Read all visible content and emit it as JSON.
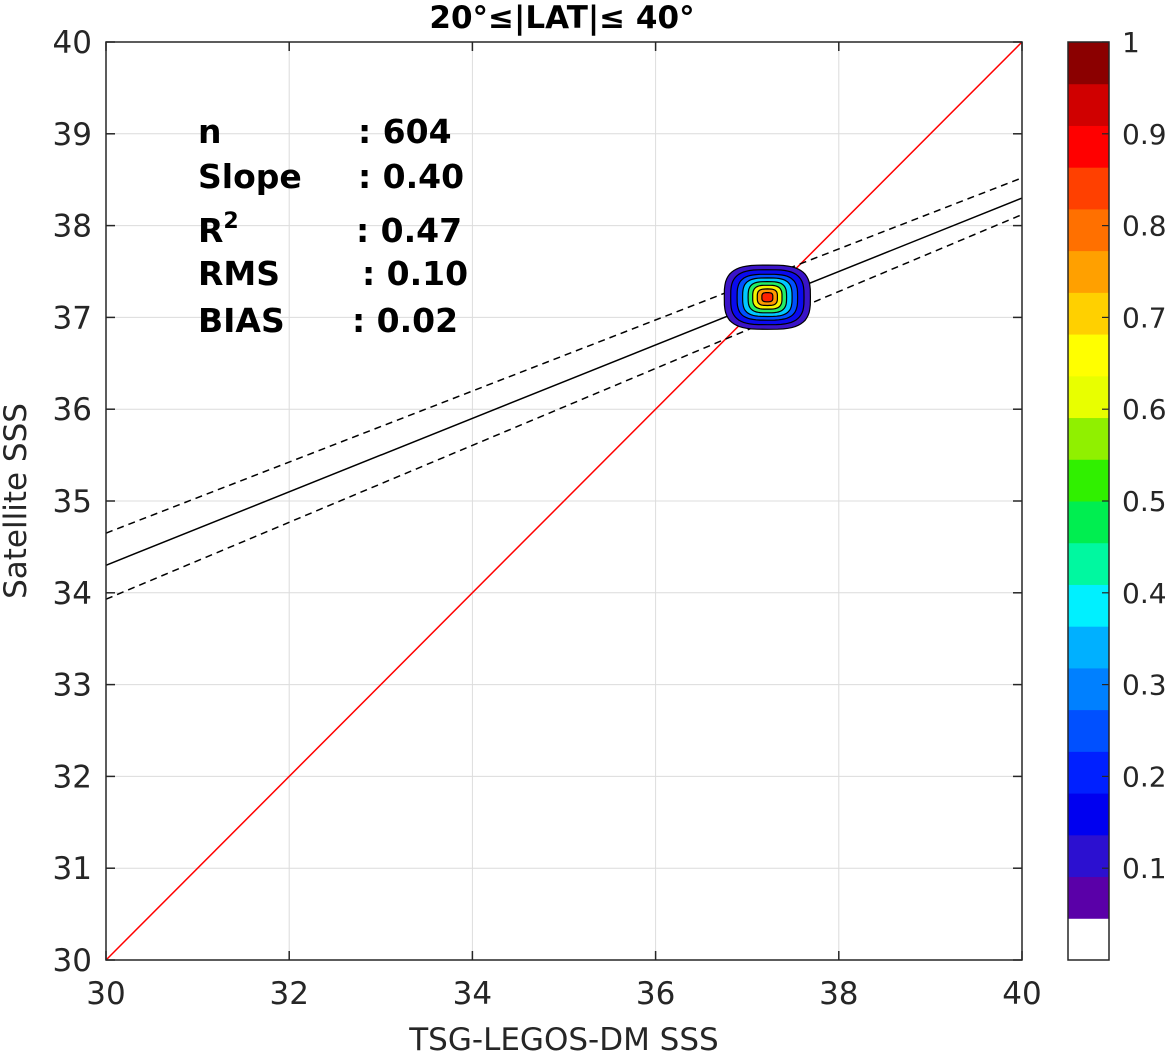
{
  "chart_data": {
    "type": "contour",
    "title": "20°≤|LAT|≤ 40°",
    "xlabel": "TSG-LEGOS-DM SSS",
    "ylabel": "Satellite SSS",
    "xlim": [
      30,
      40
    ],
    "ylim": [
      30,
      40
    ],
    "xticks": [
      "30",
      "32",
      "34",
      "36",
      "38",
      "40"
    ],
    "yticks": [
      "30",
      "31",
      "32",
      "33",
      "34",
      "35",
      "36",
      "37",
      "38",
      "39",
      "40"
    ],
    "grid": true,
    "stats": [
      {
        "label": "n",
        "value": ": 604"
      },
      {
        "label": "Slope",
        "value": ": 0.40"
      },
      {
        "label": "R",
        "sup": "2",
        "value": ": 0.47"
      },
      {
        "label": "RMS",
        "value": ": 0.10"
      },
      {
        "label": "BIAS",
        "value": ": 0.02"
      }
    ],
    "lines": {
      "identity": {
        "x": [
          30,
          40
        ],
        "y": [
          30,
          40
        ],
        "color": "#ff0000"
      },
      "fit": {
        "x": [
          30,
          40
        ],
        "y": [
          34.3,
          38.3
        ],
        "color": "#000000"
      },
      "fit_upper": {
        "x": [
          30,
          40
        ],
        "y": [
          34.65,
          38.52
        ],
        "color": "#000000",
        "dash": true
      },
      "fit_lower": {
        "x": [
          30,
          40
        ],
        "y": [
          33.93,
          38.12
        ],
        "color": "#000000",
        "dash": true
      }
    },
    "density_center": {
      "x": 37.22,
      "y": 37.22
    },
    "density_levels": [
      {
        "rx": 0.47,
        "ry": 0.35,
        "color": "#3a14c8"
      },
      {
        "rx": 0.4,
        "ry": 0.3,
        "color": "#0a0aee"
      },
      {
        "rx": 0.33,
        "ry": 0.25,
        "color": "#0050ff"
      },
      {
        "rx": 0.27,
        "ry": 0.21,
        "color": "#00c8ff"
      },
      {
        "rx": 0.21,
        "ry": 0.17,
        "color": "#22ee66"
      },
      {
        "rx": 0.16,
        "ry": 0.13,
        "color": "#f4f400"
      },
      {
        "rx": 0.11,
        "ry": 0.09,
        "color": "#ff9900"
      },
      {
        "rx": 0.06,
        "ry": 0.05,
        "color": "#ff2200"
      }
    ],
    "colorbar": {
      "colors": [
        "#ffffff",
        "#5a00a8",
        "#2c10d0",
        "#0000f0",
        "#0020ff",
        "#0050ff",
        "#0080ff",
        "#00b0ff",
        "#00f0ff",
        "#00f8a0",
        "#00ee50",
        "#30f000",
        "#90f000",
        "#e8ff00",
        "#ffff00",
        "#ffd000",
        "#ffa000",
        "#ff7000",
        "#ff4000",
        "#ff0000",
        "#d00000",
        "#8b0000"
      ],
      "ticks": [
        "0.1",
        "0.2",
        "0.3",
        "0.4",
        "0.5",
        "0.6",
        "0.7",
        "0.8",
        "0.9",
        "1"
      ],
      "tick_values": [
        0.1,
        0.2,
        0.3,
        0.4,
        0.5,
        0.6,
        0.7,
        0.8,
        0.9,
        1.0
      ]
    }
  }
}
